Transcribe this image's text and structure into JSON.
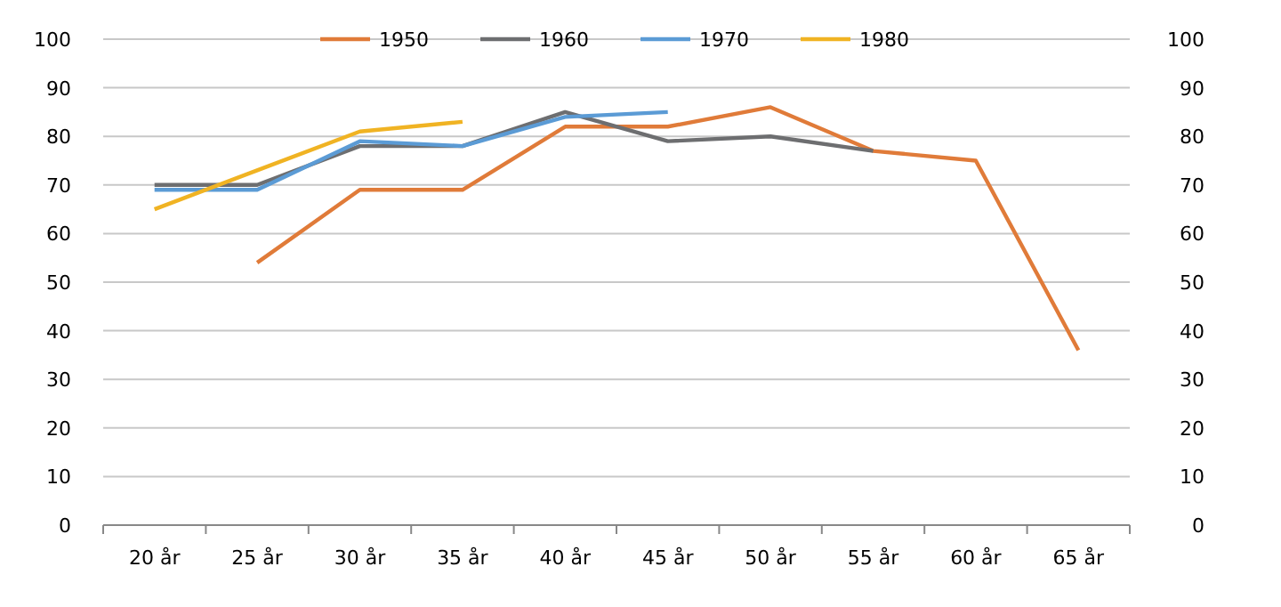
{
  "chart_data": {
    "type": "line",
    "categories": [
      "20 år",
      "25 år",
      "30 år",
      "35 år",
      "40 år",
      "45 år",
      "50 år",
      "55 år",
      "60 år",
      "65 år"
    ],
    "series": [
      {
        "name": "1950",
        "color": "#e07b39",
        "values": [
          null,
          54,
          69,
          69,
          82,
          82,
          86,
          77,
          75,
          36
        ]
      },
      {
        "name": "1960",
        "color": "#6d6e70",
        "values": [
          70,
          70,
          78,
          78,
          85,
          79,
          80,
          77,
          null,
          null
        ]
      },
      {
        "name": "1970",
        "color": "#5b9bd5",
        "values": [
          69,
          69,
          79,
          78,
          84,
          85,
          null,
          null,
          null,
          null
        ]
      },
      {
        "name": "1980",
        "color": "#f0b323",
        "values": [
          65,
          73,
          81,
          83,
          null,
          null,
          null,
          null,
          null,
          null
        ]
      }
    ],
    "ylim": [
      0,
      100
    ],
    "yticks": [
      0,
      10,
      20,
      30,
      40,
      50,
      60,
      70,
      80,
      90,
      100
    ],
    "y2lim": [
      0,
      100
    ],
    "y2ticks": [
      0,
      10,
      20,
      30,
      40,
      50,
      60,
      70,
      80,
      90,
      100
    ],
    "grid": "y",
    "legend": "top",
    "marker": "none",
    "line_style": "solid"
  }
}
